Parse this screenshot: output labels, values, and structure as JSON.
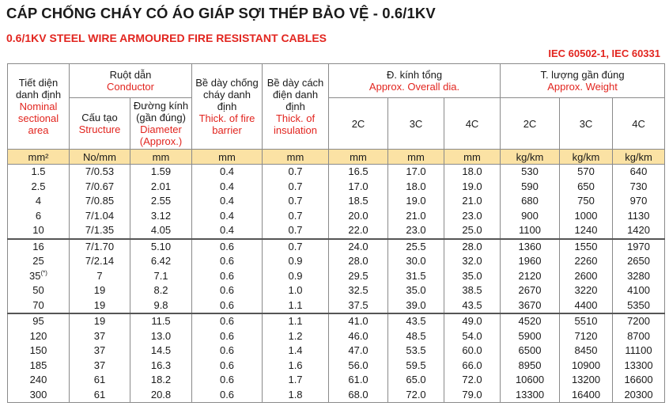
{
  "title_vn": "CÁP CHỐNG CHÁY CÓ ÁO GIÁP SỢI THÉP BẢO VỆ - 0.6/1KV",
  "title_en": "0.6/1KV STEEL WIRE ARMOURED FIRE RESISTANT CABLES",
  "standard": "IEC 60502-1, IEC 60331",
  "colors": {
    "red": "#e2251f",
    "units_row": "#fbe2a4"
  },
  "headers": {
    "section_vn": "Tiết diện danh định",
    "section_en": "Nominal sectional area",
    "conductor_vn": "Ruột dẫn",
    "conductor_en": "Conductor",
    "structure_vn": "Cấu tạo",
    "structure_en": "Structure",
    "diameter_vn": "Đường kính (gần đúng)",
    "diameter_en": "Diameter (Approx.)",
    "fire_vn": "Bề dày chống cháy danh định",
    "fire_en": "Thick. of fire barrier",
    "insul_vn": "Bề dày cách điện danh định",
    "insul_en": "Thick. of insulation",
    "overall_vn": "Đ. kính tổng",
    "overall_en": "Approx. Overall dia.",
    "weight_vn": "T. lượng gần đúng",
    "weight_en": "Approx. Weight",
    "c2": "2C",
    "c3": "3C",
    "c4": "4C"
  },
  "units": {
    "section": "mm²",
    "structure": "No/mm",
    "diameter": "mm",
    "fire": "mm",
    "insul": "mm",
    "od2": "mm",
    "od3": "mm",
    "od4": "mm",
    "w2": "kg/km",
    "w3": "kg/km",
    "w4": "kg/km"
  },
  "rows": [
    [
      "1.5",
      "7/0.53",
      "1.59",
      "0.4",
      "0.7",
      "16.5",
      "17.0",
      "18.0",
      "530",
      "570",
      "640"
    ],
    [
      "2.5",
      "7/0.67",
      "2.01",
      "0.4",
      "0.7",
      "17.0",
      "18.0",
      "19.0",
      "590",
      "650",
      "730"
    ],
    [
      "4",
      "7/0.85",
      "2.55",
      "0.4",
      "0.7",
      "18.5",
      "19.0",
      "21.0",
      "680",
      "750",
      "970"
    ],
    [
      "6",
      "7/1.04",
      "3.12",
      "0.4",
      "0.7",
      "20.0",
      "21.0",
      "23.0",
      "900",
      "1000",
      "1130"
    ],
    [
      "10",
      "7/1.35",
      "4.05",
      "0.4",
      "0.7",
      "22.0",
      "23.0",
      "25.0",
      "1100",
      "1240",
      "1420"
    ],
    [
      "16",
      "7/1.70",
      "5.10",
      "0.6",
      "0.7",
      "24.0",
      "25.5",
      "28.0",
      "1360",
      "1550",
      "1970"
    ],
    [
      "25",
      "7/2.14",
      "6.42",
      "0.6",
      "0.9",
      "28.0",
      "30.0",
      "32.0",
      "1960",
      "2260",
      "2650"
    ],
    [
      "35",
      "7",
      "7.1",
      "0.6",
      "0.9",
      "29.5",
      "31.5",
      "35.0",
      "2120",
      "2600",
      "3280"
    ],
    [
      "50",
      "19",
      "8.2",
      "0.6",
      "1.0",
      "32.5",
      "35.0",
      "38.5",
      "2670",
      "3220",
      "4100"
    ],
    [
      "70",
      "19",
      "9.8",
      "0.6",
      "1.1",
      "37.5",
      "39.0",
      "43.5",
      "3670",
      "4400",
      "5350"
    ],
    [
      "95",
      "19",
      "11.5",
      "0.6",
      "1.1",
      "41.0",
      "43.5",
      "49.0",
      "4520",
      "5510",
      "7200"
    ],
    [
      "120",
      "37",
      "13.0",
      "0.6",
      "1.2",
      "46.0",
      "48.5",
      "54.0",
      "5900",
      "7120",
      "8700"
    ],
    [
      "150",
      "37",
      "14.5",
      "0.6",
      "1.4",
      "47.0",
      "53.5",
      "60.0",
      "6500",
      "8450",
      "11100"
    ],
    [
      "185",
      "37",
      "16.3",
      "0.6",
      "1.6",
      "56.0",
      "59.5",
      "66.0",
      "8950",
      "10900",
      "13300"
    ],
    [
      "240",
      "61",
      "18.2",
      "0.6",
      "1.7",
      "61.0",
      "65.0",
      "72.0",
      "10600",
      "13200",
      "16600"
    ],
    [
      "300",
      "61",
      "20.8",
      "0.6",
      "1.8",
      "68.0",
      "72.0",
      "79.0",
      "13300",
      "16400",
      "20300"
    ]
  ],
  "footnote_mark": "(*)"
}
